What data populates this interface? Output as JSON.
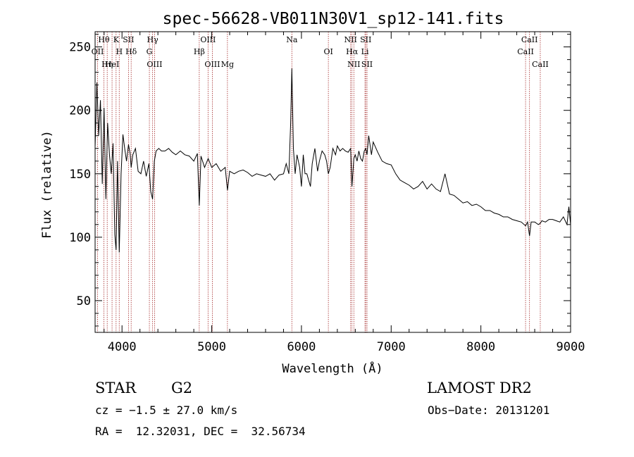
{
  "chart_data": {
    "type": "line",
    "title": "spec-56628-VB011N30V1_sp12-141.fits",
    "xlabel": "Wavelength (Å)",
    "ylabel": "Flux (relative)",
    "xlim": [
      3700,
      9000
    ],
    "ylim": [
      25,
      262
    ],
    "xticks": [
      4000,
      5000,
      6000,
      7000,
      8000,
      9000
    ],
    "yticks": [
      50,
      100,
      150,
      200,
      250
    ],
    "grid": false,
    "line_color": "#000000",
    "marker_color": "#a52a2a",
    "lines": [
      {
        "label": "Hθ",
        "x": 3798
      },
      {
        "label": "OII",
        "x": 3727
      },
      {
        "label": "Hη",
        "x": 3835
      },
      {
        "label": "K",
        "x": 3934
      },
      {
        "label": "H",
        "x": 3969
      },
      {
        "label": "HeI",
        "x": 3889
      },
      {
        "label": "SII",
        "x": 4072
      },
      {
        "label": "Hδ",
        "x": 4102
      },
      {
        "label": "OIII",
        "x": 4363
      },
      {
        "label": "Hγ",
        "x": 4341
      },
      {
        "label": "G",
        "x": 4305
      },
      {
        "label": "OIII",
        "x": 5007
      },
      {
        "label": "OIII",
        "x": 4959
      },
      {
        "label": "Hβ",
        "x": 4861
      },
      {
        "label": "Mg",
        "x": 5175
      },
      {
        "label": "Na",
        "x": 5893
      },
      {
        "label": "OI",
        "x": 6300
      },
      {
        "label": "NII",
        "x": 6584
      },
      {
        "label": "SII",
        "x": 6717
      },
      {
        "label": "Hα",
        "x": 6563
      },
      {
        "label": "SII",
        "x": 6731
      },
      {
        "label": "NII",
        "x": 6548
      },
      {
        "label": "Li",
        "x": 6708
      },
      {
        "label": "CaII",
        "x": 8662
      },
      {
        "label": "CaII",
        "x": 8542
      },
      {
        "label": "CaII",
        "x": 8498
      }
    ],
    "series": [
      {
        "x": [
          3700,
          3720,
          3740,
          3760,
          3780,
          3800,
          3820,
          3840,
          3860,
          3880,
          3900,
          3920,
          3934,
          3950,
          3969,
          3990,
          4010,
          4030,
          4050,
          4072,
          4090,
          4102,
          4120,
          4150,
          4180,
          4210,
          4240,
          4270,
          4300,
          4320,
          4341,
          4360,
          4380,
          4410,
          4440,
          4480,
          4520,
          4560,
          4600,
          4650,
          4700,
          4750,
          4800,
          4840,
          4861,
          4880,
          4920,
          4960,
          5000,
          5050,
          5100,
          5150,
          5175,
          5200,
          5250,
          5300,
          5350,
          5400,
          5450,
          5500,
          5550,
          5600,
          5650,
          5700,
          5750,
          5800,
          5830,
          5860,
          5880,
          5893,
          5910,
          5930,
          5950,
          5980,
          6000,
          6020,
          6040,
          6060,
          6080,
          6100,
          6120,
          6150,
          6180,
          6200,
          6230,
          6260,
          6280,
          6300,
          6320,
          6350,
          6380,
          6400,
          6430,
          6460,
          6490,
          6520,
          6548,
          6563,
          6584,
          6600,
          6620,
          6640,
          6660,
          6680,
          6700,
          6717,
          6731,
          6750,
          6780,
          6800,
          6850,
          6900,
          6950,
          7000,
          7050,
          7100,
          7150,
          7200,
          7250,
          7300,
          7350,
          7400,
          7450,
          7500,
          7550,
          7600,
          7650,
          7700,
          7750,
          7800,
          7850,
          7900,
          7950,
          8000,
          8050,
          8100,
          8150,
          8200,
          8250,
          8300,
          8350,
          8400,
          8450,
          8498,
          8520,
          8542,
          8560,
          8600,
          8640,
          8662,
          8680,
          8720,
          8760,
          8800,
          8840,
          8880,
          8920,
          8960,
          8980,
          9000
        ],
        "values": [
          171,
          222,
          180,
          208,
          142,
          202,
          130,
          190,
          165,
          150,
          174,
          102,
          90,
          160,
          88,
          150,
          181,
          170,
          160,
          173,
          166,
          155,
          165,
          170,
          152,
          150,
          160,
          148,
          158,
          136,
          130,
          160,
          168,
          170,
          168,
          168,
          170,
          167,
          165,
          168,
          165,
          164,
          160,
          166,
          125,
          164,
          155,
          162,
          155,
          158,
          152,
          155,
          137,
          152,
          150,
          152,
          153,
          151,
          148,
          150,
          149,
          148,
          150,
          145,
          149,
          150,
          158,
          150,
          190,
          233,
          170,
          150,
          165,
          155,
          140,
          165,
          150,
          150,
          145,
          140,
          158,
          170,
          152,
          160,
          168,
          165,
          160,
          150,
          155,
          170,
          165,
          172,
          168,
          170,
          168,
          167,
          170,
          140,
          162,
          165,
          160,
          168,
          162,
          160,
          168,
          170,
          165,
          180,
          165,
          175,
          167,
          160,
          158,
          157,
          150,
          145,
          143,
          141,
          138,
          140,
          144,
          138,
          142,
          138,
          136,
          150,
          134,
          133,
          130,
          127,
          128,
          125,
          126,
          124,
          121,
          121,
          119,
          118,
          116,
          116,
          114,
          113,
          112,
          109,
          112,
          101,
          112,
          112,
          110,
          111,
          113,
          112,
          114,
          114,
          113,
          112,
          116,
          110,
          124,
          110
        ]
      }
    ]
  },
  "info": {
    "class_label": "STAR",
    "subclass": "G2",
    "cz_label": "cz = ",
    "cz_value": "−1.5 ± 27.0 km/s",
    "survey": "LAMOST DR2",
    "obs_date": "Obs−Date: 20131201",
    "ra_dec": "RA =  12.32031, DEC =  32.56734"
  }
}
